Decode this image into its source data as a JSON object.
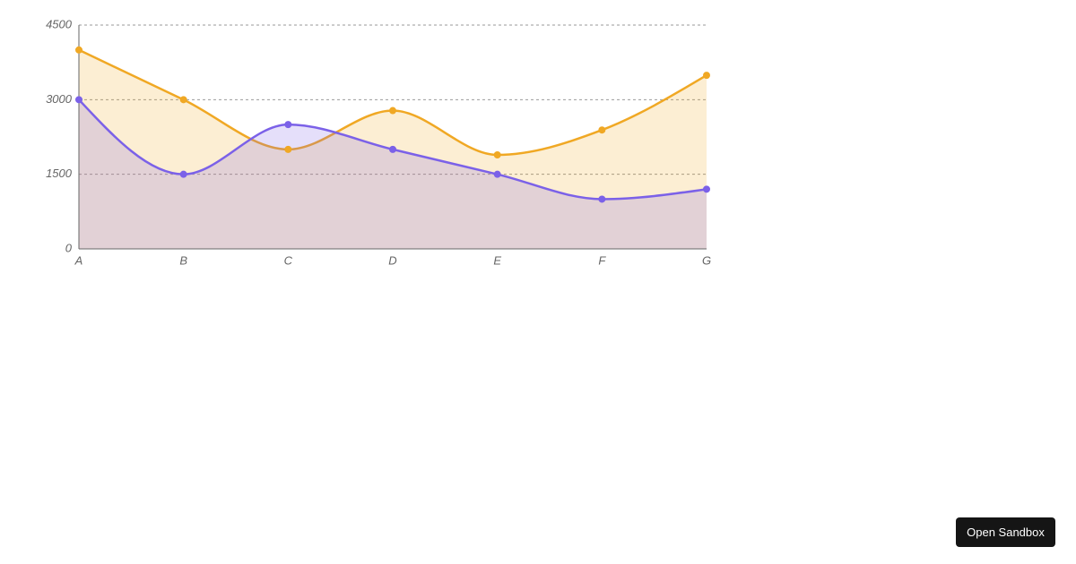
{
  "chart_data": {
    "type": "area",
    "categories": [
      "A",
      "B",
      "C",
      "D",
      "E",
      "F",
      "G"
    ],
    "series": [
      {
        "color": "#f0a824",
        "values": [
          4000,
          3000,
          2000,
          2780,
          1890,
          2390,
          3490
        ]
      },
      {
        "color": "#7b61e8",
        "values": [
          3000,
          1500,
          2500,
          2000,
          1500,
          1000,
          1200
        ]
      }
    ],
    "ylim": [
      0,
      4500
    ],
    "yticks": [
      0,
      1500,
      3000,
      4500
    ],
    "grid": true
  },
  "button": "Open Sandbox"
}
